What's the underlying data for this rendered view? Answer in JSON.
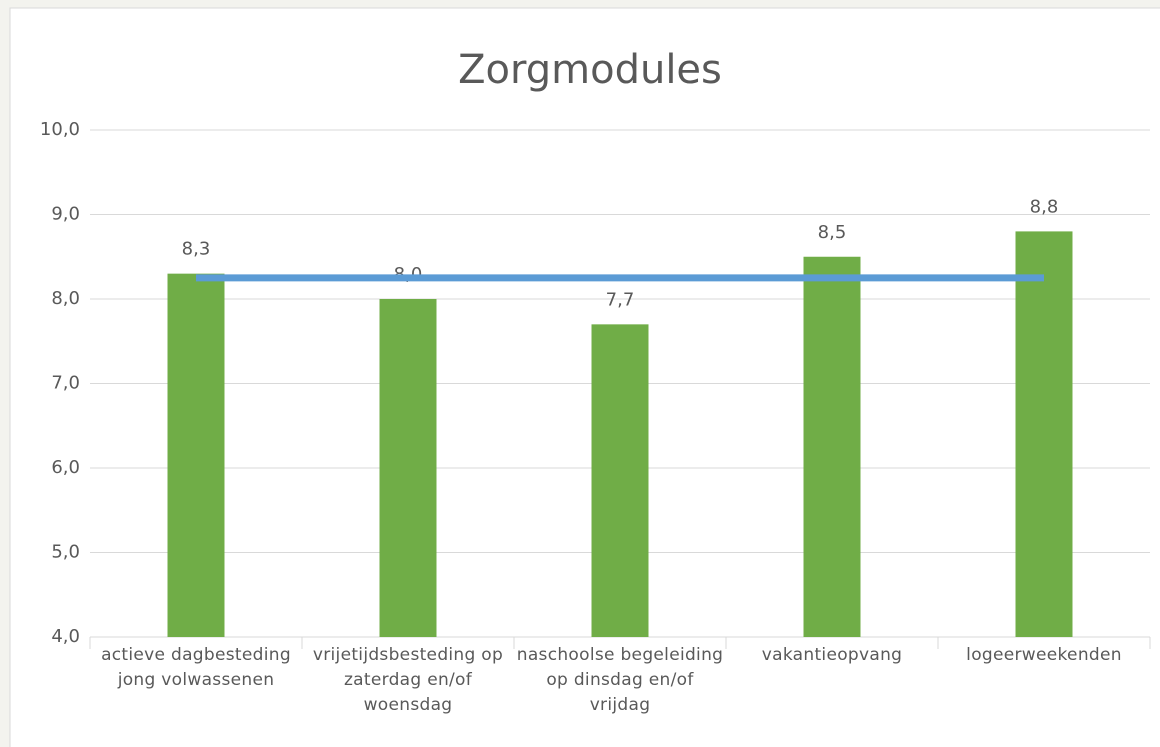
{
  "chart_data": {
    "type": "bar",
    "title": "Zorgmodules",
    "categories": [
      "actieve dagbesteding jong volwassenen",
      "vrijetijdsbesteding op zaterdag en/of woensdag",
      "naschoolse begeleiding op dinsdag en/of vrijdag",
      "vakantieopvang",
      "logeerweekenden"
    ],
    "values": [
      8.3,
      8.0,
      7.7,
      8.5,
      8.8
    ],
    "value_labels": [
      "8,3",
      "8,0",
      "7,7",
      "8,5",
      "8,8"
    ],
    "color": "#70ad47",
    "reference_line": {
      "value": 8.25,
      "color": "#5b9bd5"
    },
    "ylim": [
      4,
      10
    ],
    "yticks": [
      {
        "value": 4,
        "label": "4,0"
      },
      {
        "value": 5,
        "label": "5,0"
      },
      {
        "value": 6,
        "label": "6,0"
      },
      {
        "value": 7,
        "label": "7,0"
      },
      {
        "value": 8,
        "label": "8,0"
      },
      {
        "value": 9,
        "label": "9,0"
      },
      {
        "value": 10,
        "label": "10,0"
      }
    ],
    "grid": true
  }
}
